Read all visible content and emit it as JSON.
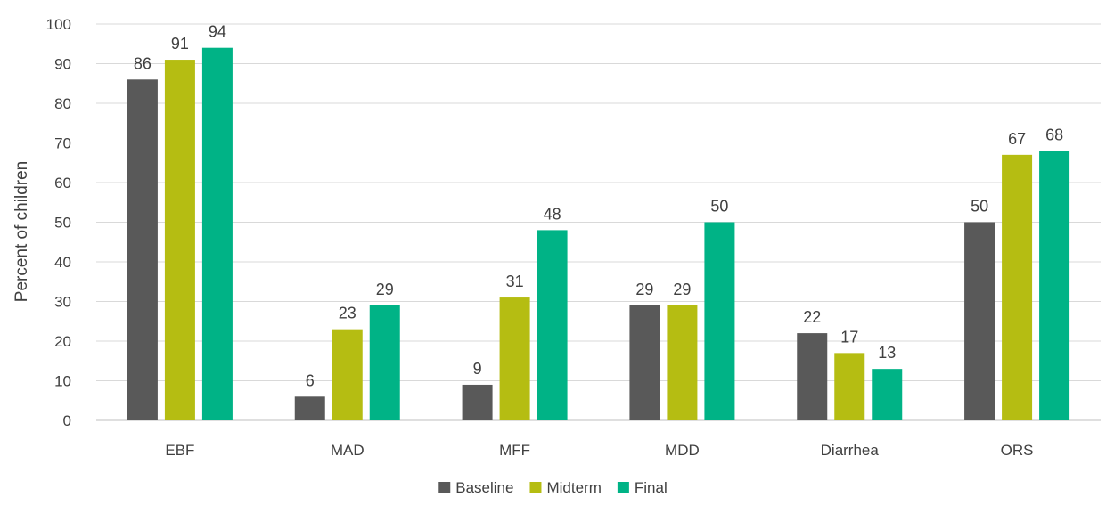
{
  "chart_data": {
    "type": "bar",
    "title": "",
    "xlabel": "",
    "ylabel": "Percent of children",
    "ylim": [
      0,
      100
    ],
    "yticks": [
      0,
      10,
      20,
      30,
      40,
      50,
      60,
      70,
      80,
      90,
      100
    ],
    "grid": true,
    "legend_position": "bottom",
    "categories": [
      "EBF",
      "MAD",
      "MFF",
      "MDD",
      "Diarrhea",
      "ORS"
    ],
    "series": [
      {
        "name": "Baseline",
        "color": "#595959",
        "values": [
          86,
          6,
          9,
          29,
          22,
          50
        ]
      },
      {
        "name": "Midterm",
        "color": "#b5bd12",
        "values": [
          91,
          23,
          31,
          29,
          17,
          67
        ]
      },
      {
        "name": "Final",
        "color": "#00b386",
        "values": [
          94,
          29,
          48,
          50,
          13,
          68
        ]
      }
    ]
  }
}
